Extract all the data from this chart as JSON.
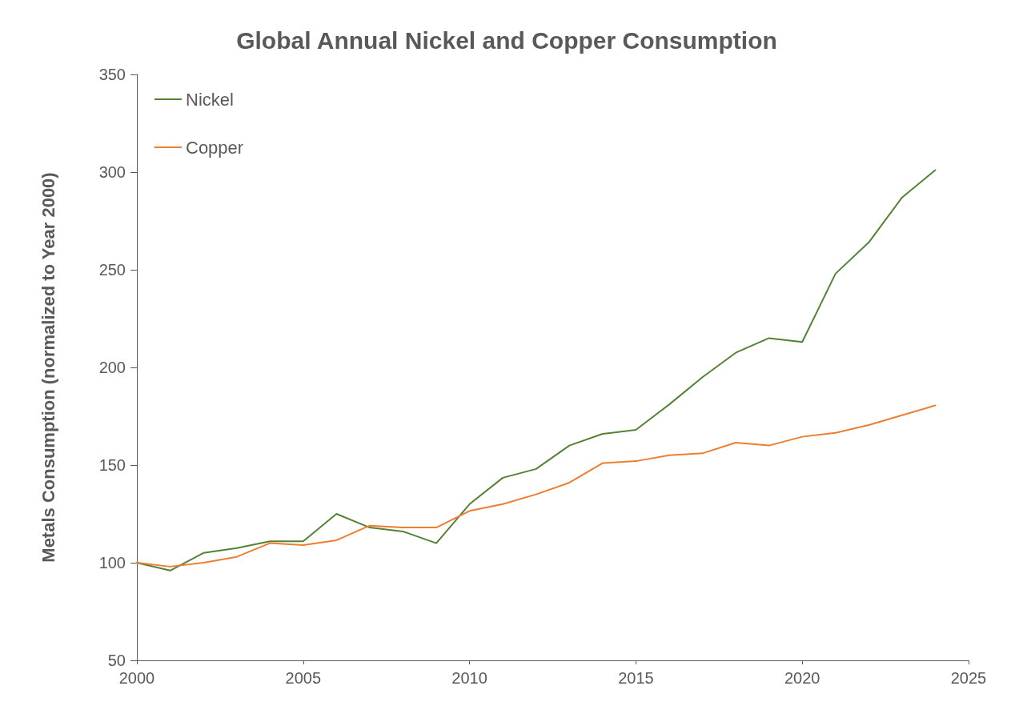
{
  "chart_data": {
    "type": "line",
    "title": "Global Annual Nickel and Copper Consumption",
    "ylabel": "Metals Consumption (normalized to Year 2000)",
    "x": [
      2000,
      2001,
      2002,
      2003,
      2004,
      2005,
      2006,
      2007,
      2008,
      2009,
      2010,
      2011,
      2012,
      2013,
      2014,
      2015,
      2016,
      2017,
      2018,
      2019,
      2020,
      2021,
      2022,
      2023,
      2024
    ],
    "series": [
      {
        "name": "Nickel",
        "color": "#548235",
        "values": [
          100,
          96,
          105,
          107.5,
          111,
          111,
          125,
          118,
          116,
          110,
          130,
          143.5,
          148,
          160,
          166,
          168,
          181,
          195,
          207.5,
          215,
          213,
          248,
          264,
          287,
          301
        ]
      },
      {
        "name": "Copper",
        "color": "#ed7d31",
        "values": [
          100,
          98,
          100,
          103,
          110,
          109,
          111.5,
          119,
          118,
          118,
          126.5,
          130,
          135,
          141,
          151,
          152,
          155,
          156,
          161.5,
          160,
          164.5,
          166.5,
          170.5,
          175.5,
          180.5
        ]
      }
    ],
    "xlim": [
      2000,
      2025
    ],
    "xticks": [
      2000,
      2005,
      2010,
      2015,
      2020,
      2025
    ],
    "ylim": [
      50,
      350
    ],
    "yticks": [
      50,
      100,
      150,
      200,
      250,
      300,
      350
    ],
    "grid": false,
    "legend": "top left",
    "marker": "none",
    "line_style": "solid"
  }
}
